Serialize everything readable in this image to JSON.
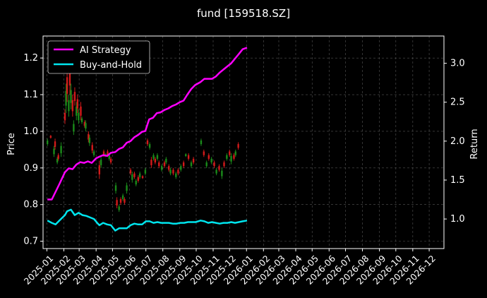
{
  "chart_data": {
    "type": "line",
    "title": "fund [159518.SZ]",
    "ylabel_left": "Price",
    "ylabel_right": "Return",
    "xlabel": "",
    "grid": true,
    "legend_position": "top-left",
    "colors": {
      "background": "#000000",
      "text": "#ffffff",
      "grid": "#555555",
      "up": "#1a8a1a",
      "down": "#d21a1a"
    },
    "y_left": {
      "ylim": [
        0.68,
        1.26
      ],
      "ticks": [
        "0.7",
        "0.8",
        "0.9",
        "1.0",
        "1.1",
        "1.2"
      ]
    },
    "y_right": {
      "ylim": [
        0.62,
        3.35
      ],
      "ticks": [
        "1.0",
        "1.5",
        "2.0",
        "2.5",
        "3.0"
      ]
    },
    "x_ticks": [
      "2025-01",
      "2025-02",
      "2025-03",
      "2025-04",
      "2025-05",
      "2025-06",
      "2025-07",
      "2025-08",
      "2025-09",
      "2025-10",
      "2025-11",
      "2025-12",
      "2026-01",
      "2026-02",
      "2026-03",
      "2026-04",
      "2026-05",
      "2026-06",
      "2026-07",
      "2026-08",
      "2026-09",
      "2026-10",
      "2026-11",
      "2026-12"
    ],
    "x_range": [
      "2024-12-25",
      "2026-12-28"
    ],
    "series": [
      {
        "name": "AI Strategy",
        "axis": "right",
        "color": "#ff00ff",
        "points": [
          [
            "2025-01-02",
            1.25
          ],
          [
            "2025-01-10",
            1.25
          ],
          [
            "2025-01-17",
            1.35
          ],
          [
            "2025-01-24",
            1.45
          ],
          [
            "2025-02-03",
            1.6
          ],
          [
            "2025-02-10",
            1.65
          ],
          [
            "2025-02-17",
            1.64
          ],
          [
            "2025-02-24",
            1.7
          ],
          [
            "2025-03-03",
            1.73
          ],
          [
            "2025-03-10",
            1.72
          ],
          [
            "2025-03-17",
            1.74
          ],
          [
            "2025-03-24",
            1.72
          ],
          [
            "2025-04-01",
            1.78
          ],
          [
            "2025-04-07",
            1.8
          ],
          [
            "2025-04-14",
            1.82
          ],
          [
            "2025-04-21",
            1.81
          ],
          [
            "2025-04-28",
            1.85
          ],
          [
            "2025-05-06",
            1.86
          ],
          [
            "2025-05-13",
            1.9
          ],
          [
            "2025-05-20",
            1.92
          ],
          [
            "2025-05-27",
            1.98
          ],
          [
            "2025-06-03",
            2.0
          ],
          [
            "2025-06-10",
            2.05
          ],
          [
            "2025-06-17",
            2.08
          ],
          [
            "2025-06-24",
            2.12
          ],
          [
            "2025-06-30",
            2.13
          ],
          [
            "2025-07-07",
            2.28
          ],
          [
            "2025-07-14",
            2.3
          ],
          [
            "2025-07-21",
            2.36
          ],
          [
            "2025-07-28",
            2.37
          ],
          [
            "2025-08-04",
            2.4
          ],
          [
            "2025-08-11",
            2.42
          ],
          [
            "2025-08-18",
            2.45
          ],
          [
            "2025-08-25",
            2.47
          ],
          [
            "2025-09-01",
            2.5
          ],
          [
            "2025-09-08",
            2.52
          ],
          [
            "2025-09-15",
            2.6
          ],
          [
            "2025-09-22",
            2.67
          ],
          [
            "2025-09-29",
            2.72
          ],
          [
            "2025-10-09",
            2.76
          ],
          [
            "2025-10-16",
            2.8
          ],
          [
            "2025-10-23",
            2.8
          ],
          [
            "2025-10-30",
            2.8
          ],
          [
            "2025-11-06",
            2.83
          ],
          [
            "2025-11-13",
            2.88
          ],
          [
            "2025-11-20",
            2.92
          ],
          [
            "2025-11-27",
            2.96
          ],
          [
            "2025-12-04",
            3.0
          ],
          [
            "2025-12-11",
            3.06
          ],
          [
            "2025-12-18",
            3.12
          ],
          [
            "2025-12-25",
            3.18
          ],
          [
            "2026-01-02",
            3.2
          ]
        ]
      },
      {
        "name": "Buy-and-Hold",
        "axis": "right",
        "color": "#00e5ee",
        "points": [
          [
            "2025-01-02",
            0.98
          ],
          [
            "2025-01-10",
            0.95
          ],
          [
            "2025-01-17",
            0.93
          ],
          [
            "2025-01-24",
            0.98
          ],
          [
            "2025-02-03",
            1.05
          ],
          [
            "2025-02-07",
            1.1
          ],
          [
            "2025-02-14",
            1.12
          ],
          [
            "2025-02-21",
            1.05
          ],
          [
            "2025-02-28",
            1.08
          ],
          [
            "2025-03-07",
            1.05
          ],
          [
            "2025-03-14",
            1.04
          ],
          [
            "2025-03-21",
            1.02
          ],
          [
            "2025-03-28",
            1.0
          ],
          [
            "2025-04-03",
            0.95
          ],
          [
            "2025-04-07",
            0.92
          ],
          [
            "2025-04-14",
            0.95
          ],
          [
            "2025-04-21",
            0.93
          ],
          [
            "2025-04-28",
            0.92
          ],
          [
            "2025-05-06",
            0.85
          ],
          [
            "2025-05-13",
            0.88
          ],
          [
            "2025-05-20",
            0.88
          ],
          [
            "2025-05-27",
            0.88
          ],
          [
            "2025-06-03",
            0.92
          ],
          [
            "2025-06-10",
            0.94
          ],
          [
            "2025-06-17",
            0.93
          ],
          [
            "2025-06-24",
            0.93
          ],
          [
            "2025-07-01",
            0.97
          ],
          [
            "2025-07-08",
            0.97
          ],
          [
            "2025-07-15",
            0.95
          ],
          [
            "2025-07-22",
            0.96
          ],
          [
            "2025-07-29",
            0.95
          ],
          [
            "2025-08-05",
            0.95
          ],
          [
            "2025-08-12",
            0.95
          ],
          [
            "2025-08-19",
            0.94
          ],
          [
            "2025-08-26",
            0.94
          ],
          [
            "2025-09-02",
            0.95
          ],
          [
            "2025-09-09",
            0.95
          ],
          [
            "2025-09-16",
            0.96
          ],
          [
            "2025-09-23",
            0.96
          ],
          [
            "2025-09-30",
            0.96
          ],
          [
            "2025-10-09",
            0.98
          ],
          [
            "2025-10-16",
            0.97
          ],
          [
            "2025-10-23",
            0.95
          ],
          [
            "2025-10-30",
            0.96
          ],
          [
            "2025-11-06",
            0.95
          ],
          [
            "2025-11-13",
            0.94
          ],
          [
            "2025-11-20",
            0.95
          ],
          [
            "2025-11-27",
            0.95
          ],
          [
            "2025-12-04",
            0.96
          ],
          [
            "2025-12-11",
            0.95
          ],
          [
            "2025-12-18",
            0.96
          ],
          [
            "2025-12-25",
            0.97
          ],
          [
            "2026-01-02",
            0.98
          ]
        ]
      }
    ],
    "price_bars": {
      "axis": "left",
      "bars": [
        [
          "2025-01-02",
          0.96,
          0.98
        ],
        [
          "2025-01-08",
          0.98,
          0.99
        ],
        [
          "2025-01-14",
          0.93,
          0.96
        ],
        [
          "2025-01-16",
          0.95,
          0.98
        ],
        [
          "2025-01-20",
          0.91,
          0.93
        ],
        [
          "2025-01-22",
          0.92,
          0.94
        ],
        [
          "2025-01-27",
          0.93,
          0.97
        ],
        [
          "2025-02-03",
          1.02,
          1.06
        ],
        [
          "2025-02-05",
          1.05,
          1.13
        ],
        [
          "2025-02-07",
          1.08,
          1.17
        ],
        [
          "2025-02-10",
          1.04,
          1.1
        ],
        [
          "2025-02-12",
          1.1,
          1.2
        ],
        [
          "2025-02-14",
          1.06,
          1.13
        ],
        [
          "2025-02-17",
          1.04,
          1.1
        ],
        [
          "2025-02-19",
          0.99,
          1.03
        ],
        [
          "2025-02-21",
          1.07,
          1.12
        ],
        [
          "2025-02-24",
          1.03,
          1.08
        ],
        [
          "2025-02-26",
          1.05,
          1.1
        ],
        [
          "2025-02-28",
          1.02,
          1.06
        ],
        [
          "2025-03-04",
          1.03,
          1.08
        ],
        [
          "2025-03-06",
          1.02,
          1.04
        ],
        [
          "2025-03-11",
          1.01,
          1.03
        ],
        [
          "2025-03-13",
          1.0,
          1.03
        ],
        [
          "2025-03-18",
          0.97,
          1.0
        ],
        [
          "2025-03-20",
          0.96,
          0.99
        ],
        [
          "2025-03-25",
          0.94,
          0.97
        ],
        [
          "2025-03-28",
          0.93,
          0.95
        ],
        [
          "2025-04-07",
          0.87,
          0.92
        ],
        [
          "2025-04-10",
          0.9,
          0.93
        ],
        [
          "2025-04-15",
          0.93,
          0.95
        ],
        [
          "2025-04-18",
          0.93,
          0.94
        ],
        [
          "2025-04-22",
          0.93,
          0.95
        ],
        [
          "2025-04-25",
          0.92,
          0.94
        ],
        [
          "2025-04-28",
          0.91,
          0.93
        ],
        [
          "2025-05-07",
          0.83,
          0.86
        ],
        [
          "2025-05-09",
          0.79,
          0.82
        ],
        [
          "2025-05-13",
          0.78,
          0.8
        ],
        [
          "2025-05-16",
          0.8,
          0.82
        ],
        [
          "2025-05-20",
          0.81,
          0.83
        ],
        [
          "2025-05-23",
          0.8,
          0.82
        ],
        [
          "2025-05-27",
          0.83,
          0.86
        ],
        [
          "2025-06-03",
          0.88,
          0.9
        ],
        [
          "2025-06-06",
          0.86,
          0.89
        ],
        [
          "2025-06-10",
          0.87,
          0.89
        ],
        [
          "2025-06-13",
          0.85,
          0.87
        ],
        [
          "2025-06-17",
          0.86,
          0.88
        ],
        [
          "2025-06-20",
          0.87,
          0.89
        ],
        [
          "2025-06-25",
          0.87,
          0.88
        ],
        [
          "2025-06-30",
          0.88,
          0.9
        ],
        [
          "2025-07-04",
          0.96,
          0.98
        ],
        [
          "2025-07-08",
          0.95,
          0.97
        ],
        [
          "2025-07-11",
          0.9,
          0.93
        ],
        [
          "2025-07-15",
          0.92,
          0.94
        ],
        [
          "2025-07-18",
          0.91,
          0.93
        ],
        [
          "2025-07-22",
          0.92,
          0.94
        ],
        [
          "2025-07-25",
          0.9,
          0.92
        ],
        [
          "2025-07-30",
          0.89,
          0.91
        ],
        [
          "2025-08-04",
          0.9,
          0.92
        ],
        [
          "2025-08-07",
          0.91,
          0.93
        ],
        [
          "2025-08-12",
          0.89,
          0.91
        ],
        [
          "2025-08-15",
          0.88,
          0.9
        ],
        [
          "2025-08-20",
          0.88,
          0.9
        ],
        [
          "2025-08-25",
          0.87,
          0.89
        ],
        [
          "2025-08-29",
          0.88,
          0.9
        ],
        [
          "2025-09-03",
          0.89,
          0.91
        ],
        [
          "2025-09-08",
          0.9,
          0.92
        ],
        [
          "2025-09-12",
          0.93,
          0.94
        ],
        [
          "2025-09-17",
          0.92,
          0.94
        ],
        [
          "2025-09-22",
          0.9,
          0.92
        ],
        [
          "2025-09-26",
          0.91,
          0.93
        ],
        [
          "2025-10-10",
          0.96,
          0.98
        ],
        [
          "2025-10-15",
          0.93,
          0.95
        ],
        [
          "2025-10-20",
          0.9,
          0.92
        ],
        [
          "2025-10-24",
          0.92,
          0.94
        ],
        [
          "2025-10-29",
          0.91,
          0.93
        ],
        [
          "2025-11-03",
          0.9,
          0.92
        ],
        [
          "2025-11-07",
          0.88,
          0.9
        ],
        [
          "2025-11-12",
          0.89,
          0.91
        ],
        [
          "2025-11-17",
          0.87,
          0.9
        ],
        [
          "2025-11-21",
          0.9,
          0.92
        ],
        [
          "2025-11-26",
          0.92,
          0.94
        ],
        [
          "2025-12-01",
          0.93,
          0.95
        ],
        [
          "2025-12-04",
          0.91,
          0.94
        ],
        [
          "2025-12-09",
          0.92,
          0.94
        ],
        [
          "2025-12-12",
          0.93,
          0.95
        ],
        [
          "2025-12-17",
          0.95,
          0.97
        ]
      ]
    }
  }
}
